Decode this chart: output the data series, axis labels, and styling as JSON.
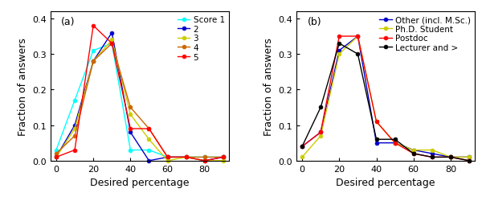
{
  "x": [
    0,
    10,
    20,
    30,
    40,
    50,
    60,
    70,
    80,
    90
  ],
  "panel_a": {
    "score1": [
      0.03,
      0.17,
      0.31,
      0.33,
      0.03,
      0.03,
      0.01,
      0.01,
      0.01,
      0.01
    ],
    "score2": [
      0.01,
      0.1,
      0.28,
      0.36,
      0.08,
      0.0,
      0.01,
      0.01,
      0.0,
      0.01
    ],
    "score3": [
      0.01,
      0.09,
      0.28,
      0.34,
      0.13,
      0.06,
      0.0,
      0.01,
      0.0,
      0.0
    ],
    "score4": [
      0.02,
      0.07,
      0.28,
      0.33,
      0.15,
      0.09,
      0.01,
      0.01,
      0.01,
      0.01
    ],
    "score5": [
      0.01,
      0.03,
      0.38,
      0.33,
      0.09,
      0.09,
      0.01,
      0.01,
      0.0,
      0.01
    ],
    "colors": [
      "cyan",
      "#0000CC",
      "#CCCC00",
      "#CC6600",
      "red"
    ],
    "labels": [
      "Score 1",
      "2",
      "3",
      "4",
      "5"
    ]
  },
  "panel_b": {
    "other": [
      0.04,
      0.08,
      0.31,
      0.35,
      0.05,
      0.05,
      0.03,
      0.02,
      0.01,
      0.01
    ],
    "phd": [
      0.01,
      0.07,
      0.3,
      0.35,
      0.11,
      0.05,
      0.03,
      0.03,
      0.01,
      0.01
    ],
    "postdoc": [
      0.04,
      0.08,
      0.35,
      0.35,
      0.11,
      0.05,
      0.02,
      0.01,
      0.01,
      0.0
    ],
    "lecturer": [
      0.04,
      0.15,
      0.33,
      0.3,
      0.06,
      0.06,
      0.02,
      0.01,
      0.01,
      0.0
    ],
    "colors": [
      "#0000CC",
      "#CCCC00",
      "red",
      "black"
    ],
    "labels": [
      "Other (incl. M.Sc.)",
      "Ph.D. Student",
      "Postdoc",
      "Lecturer and >"
    ]
  },
  "xlim": [
    -3,
    93
  ],
  "ylim": [
    0,
    0.42
  ],
  "ylim_display": [
    0.0,
    0.4
  ],
  "yticks": [
    0.0,
    0.1,
    0.2,
    0.3,
    0.4
  ],
  "xticks": [
    0,
    20,
    40,
    60,
    80
  ],
  "xlabel": "Desired percentage",
  "ylabel": "Fraction of answers",
  "bg_color": "#FFFFFF",
  "plot_bg": "#FFFFFF",
  "markersize": 3.5,
  "linewidth": 1.0
}
